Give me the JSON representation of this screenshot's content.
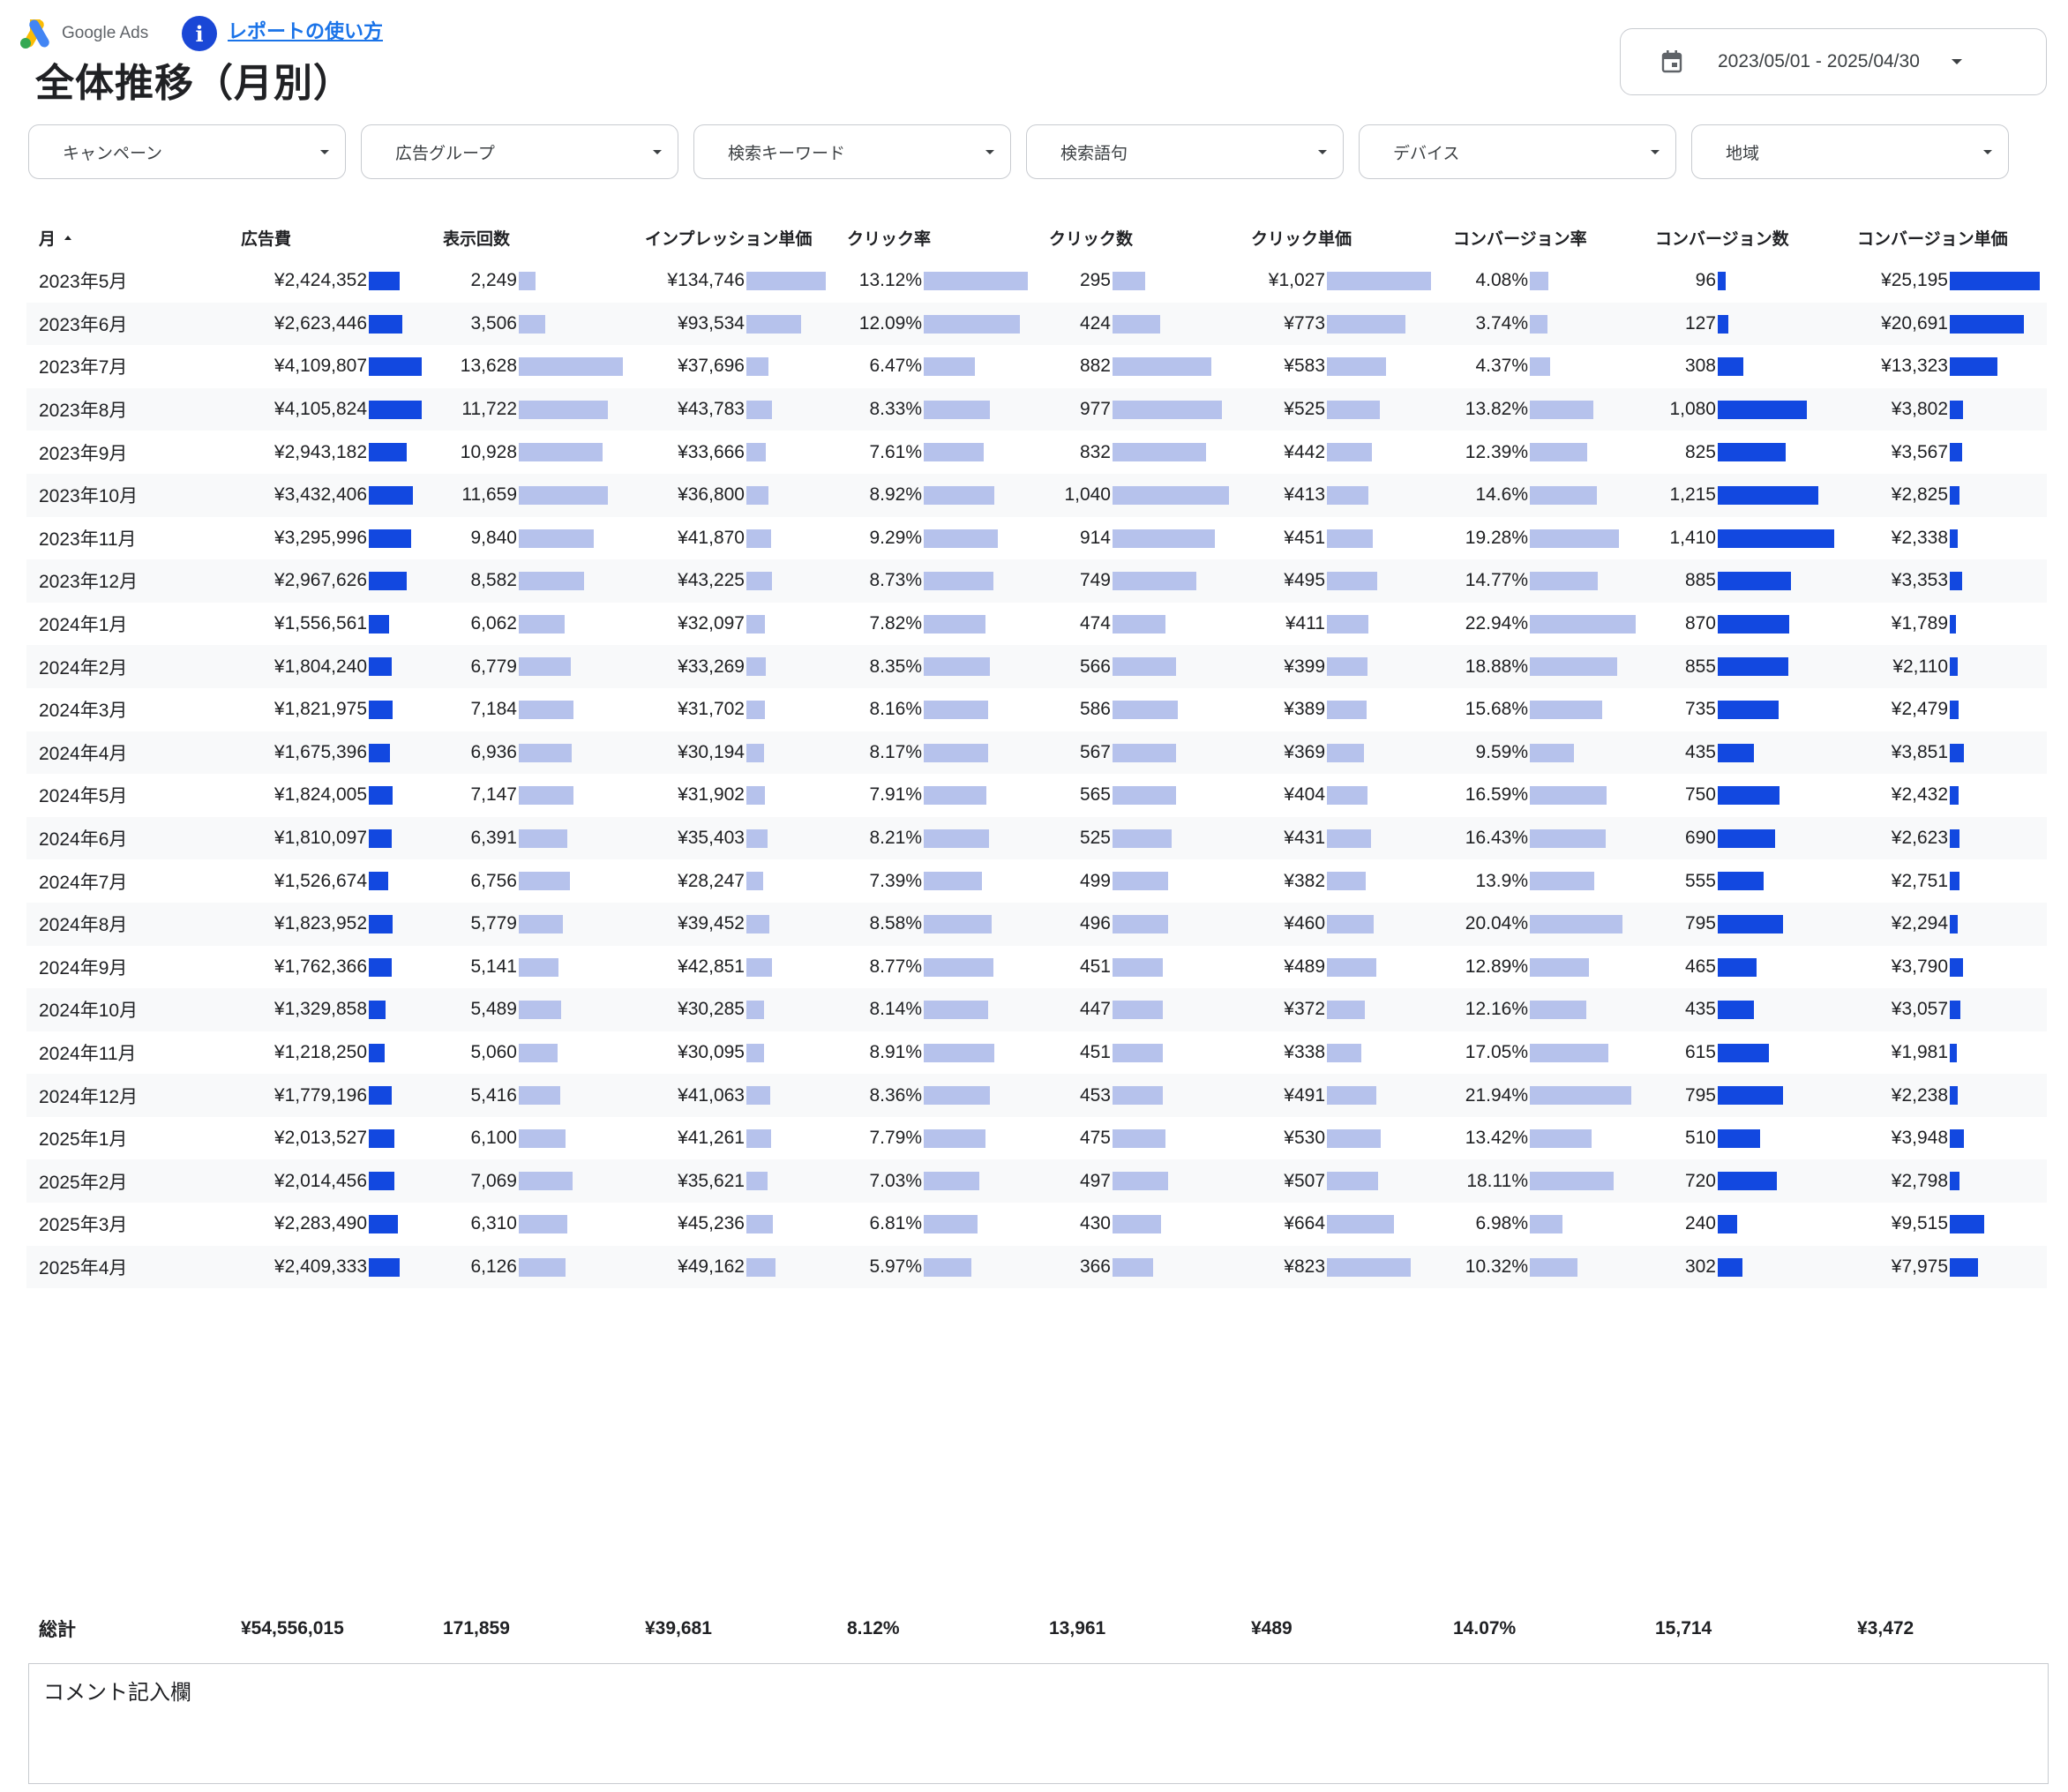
{
  "header": {
    "logo_text": "Google Ads",
    "help_link": "レポートの使い方",
    "title": "全体推移（月別）",
    "date_range": "2023/05/01 - 2025/04/30"
  },
  "filters": [
    "キャンペーン",
    "広告グループ",
    "検索キーワード",
    "検索語句",
    "デバイス",
    "地域"
  ],
  "table": {
    "columns": [
      "月",
      "広告費",
      "表示回数",
      "インプレッション単価",
      "クリック率",
      "クリック数",
      "クリック単価",
      "コンバージョン率",
      "コンバージョン数",
      "コンバージョン単価"
    ],
    "sort_column": "月",
    "sort_direction": "asc",
    "rows": [
      {
        "month": "2023年5月",
        "cost": "¥2,424,352",
        "impressions": "2,249",
        "cpm": "¥134,746",
        "ctr": "13.12%",
        "clicks": "295",
        "cpc": "¥1,027",
        "cvr": "4.08%",
        "conversions": "96",
        "cpa": "¥25,195"
      },
      {
        "month": "2023年6月",
        "cost": "¥2,623,446",
        "impressions": "3,506",
        "cpm": "¥93,534",
        "ctr": "12.09%",
        "clicks": "424",
        "cpc": "¥773",
        "cvr": "3.74%",
        "conversions": "127",
        "cpa": "¥20,691"
      },
      {
        "month": "2023年7月",
        "cost": "¥4,109,807",
        "impressions": "13,628",
        "cpm": "¥37,696",
        "ctr": "6.47%",
        "clicks": "882",
        "cpc": "¥583",
        "cvr": "4.37%",
        "conversions": "308",
        "cpa": "¥13,323"
      },
      {
        "month": "2023年8月",
        "cost": "¥4,105,824",
        "impressions": "11,722",
        "cpm": "¥43,783",
        "ctr": "8.33%",
        "clicks": "977",
        "cpc": "¥525",
        "cvr": "13.82%",
        "conversions": "1,080",
        "cpa": "¥3,802"
      },
      {
        "month": "2023年9月",
        "cost": "¥2,943,182",
        "impressions": "10,928",
        "cpm": "¥33,666",
        "ctr": "7.61%",
        "clicks": "832",
        "cpc": "¥442",
        "cvr": "12.39%",
        "conversions": "825",
        "cpa": "¥3,567"
      },
      {
        "month": "2023年10月",
        "cost": "¥3,432,406",
        "impressions": "11,659",
        "cpm": "¥36,800",
        "ctr": "8.92%",
        "clicks": "1,040",
        "cpc": "¥413",
        "cvr": "14.6%",
        "conversions": "1,215",
        "cpa": "¥2,825"
      },
      {
        "month": "2023年11月",
        "cost": "¥3,295,996",
        "impressions": "9,840",
        "cpm": "¥41,870",
        "ctr": "9.29%",
        "clicks": "914",
        "cpc": "¥451",
        "cvr": "19.28%",
        "conversions": "1,410",
        "cpa": "¥2,338"
      },
      {
        "month": "2023年12月",
        "cost": "¥2,967,626",
        "impressions": "8,582",
        "cpm": "¥43,225",
        "ctr": "8.73%",
        "clicks": "749",
        "cpc": "¥495",
        "cvr": "14.77%",
        "conversions": "885",
        "cpa": "¥3,353"
      },
      {
        "month": "2024年1月",
        "cost": "¥1,556,561",
        "impressions": "6,062",
        "cpm": "¥32,097",
        "ctr": "7.82%",
        "clicks": "474",
        "cpc": "¥411",
        "cvr": "22.94%",
        "conversions": "870",
        "cpa": "¥1,789"
      },
      {
        "month": "2024年2月",
        "cost": "¥1,804,240",
        "impressions": "6,779",
        "cpm": "¥33,269",
        "ctr": "8.35%",
        "clicks": "566",
        "cpc": "¥399",
        "cvr": "18.88%",
        "conversions": "855",
        "cpa": "¥2,110"
      },
      {
        "month": "2024年3月",
        "cost": "¥1,821,975",
        "impressions": "7,184",
        "cpm": "¥31,702",
        "ctr": "8.16%",
        "clicks": "586",
        "cpc": "¥389",
        "cvr": "15.68%",
        "conversions": "735",
        "cpa": "¥2,479"
      },
      {
        "month": "2024年4月",
        "cost": "¥1,675,396",
        "impressions": "6,936",
        "cpm": "¥30,194",
        "ctr": "8.17%",
        "clicks": "567",
        "cpc": "¥369",
        "cvr": "9.59%",
        "conversions": "435",
        "cpa": "¥3,851"
      },
      {
        "month": "2024年5月",
        "cost": "¥1,824,005",
        "impressions": "7,147",
        "cpm": "¥31,902",
        "ctr": "7.91%",
        "clicks": "565",
        "cpc": "¥404",
        "cvr": "16.59%",
        "conversions": "750",
        "cpa": "¥2,432"
      },
      {
        "month": "2024年6月",
        "cost": "¥1,810,097",
        "impressions": "6,391",
        "cpm": "¥35,403",
        "ctr": "8.21%",
        "clicks": "525",
        "cpc": "¥431",
        "cvr": "16.43%",
        "conversions": "690",
        "cpa": "¥2,623"
      },
      {
        "month": "2024年7月",
        "cost": "¥1,526,674",
        "impressions": "6,756",
        "cpm": "¥28,247",
        "ctr": "7.39%",
        "clicks": "499",
        "cpc": "¥382",
        "cvr": "13.9%",
        "conversions": "555",
        "cpa": "¥2,751"
      },
      {
        "month": "2024年8月",
        "cost": "¥1,823,952",
        "impressions": "5,779",
        "cpm": "¥39,452",
        "ctr": "8.58%",
        "clicks": "496",
        "cpc": "¥460",
        "cvr": "20.04%",
        "conversions": "795",
        "cpa": "¥2,294"
      },
      {
        "month": "2024年9月",
        "cost": "¥1,762,366",
        "impressions": "5,141",
        "cpm": "¥42,851",
        "ctr": "8.77%",
        "clicks": "451",
        "cpc": "¥489",
        "cvr": "12.89%",
        "conversions": "465",
        "cpa": "¥3,790"
      },
      {
        "month": "2024年10月",
        "cost": "¥1,329,858",
        "impressions": "5,489",
        "cpm": "¥30,285",
        "ctr": "8.14%",
        "clicks": "447",
        "cpc": "¥372",
        "cvr": "12.16%",
        "conversions": "435",
        "cpa": "¥3,057"
      },
      {
        "month": "2024年11月",
        "cost": "¥1,218,250",
        "impressions": "5,060",
        "cpm": "¥30,095",
        "ctr": "8.91%",
        "clicks": "451",
        "cpc": "¥338",
        "cvr": "17.05%",
        "conversions": "615",
        "cpa": "¥1,981"
      },
      {
        "month": "2024年12月",
        "cost": "¥1,779,196",
        "impressions": "5,416",
        "cpm": "¥41,063",
        "ctr": "8.36%",
        "clicks": "453",
        "cpc": "¥491",
        "cvr": "21.94%",
        "conversions": "795",
        "cpa": "¥2,238"
      },
      {
        "month": "2025年1月",
        "cost": "¥2,013,527",
        "impressions": "6,100",
        "cpm": "¥41,261",
        "ctr": "7.79%",
        "clicks": "475",
        "cpc": "¥530",
        "cvr": "13.42%",
        "conversions": "510",
        "cpa": "¥3,948"
      },
      {
        "month": "2025年2月",
        "cost": "¥2,014,456",
        "impressions": "7,069",
        "cpm": "¥35,621",
        "ctr": "7.03%",
        "clicks": "497",
        "cpc": "¥507",
        "cvr": "18.11%",
        "conversions": "720",
        "cpa": "¥2,798"
      },
      {
        "month": "2025年3月",
        "cost": "¥2,283,490",
        "impressions": "6,310",
        "cpm": "¥45,236",
        "ctr": "6.81%",
        "clicks": "430",
        "cpc": "¥664",
        "cvr": "6.98%",
        "conversions": "240",
        "cpa": "¥9,515"
      },
      {
        "month": "2025年4月",
        "cost": "¥2,409,333",
        "impressions": "6,126",
        "cpm": "¥49,162",
        "ctr": "5.97%",
        "clicks": "366",
        "cpc": "¥823",
        "cvr": "10.32%",
        "conversions": "302",
        "cpa": "¥7,975"
      }
    ],
    "totals": {
      "label": "総計",
      "cost": "¥54,556,015",
      "impressions": "171,859",
      "cpm": "¥39,681",
      "ctr": "8.12%",
      "clicks": "13,961",
      "cpc": "¥489",
      "cvr": "14.07%",
      "conversions": "15,714",
      "cpa": "¥3,472"
    }
  },
  "bar_colors": {
    "dark": "#1248e0",
    "light": "#b6c2ec"
  },
  "comment": {
    "label": "コメント記入欄"
  }
}
